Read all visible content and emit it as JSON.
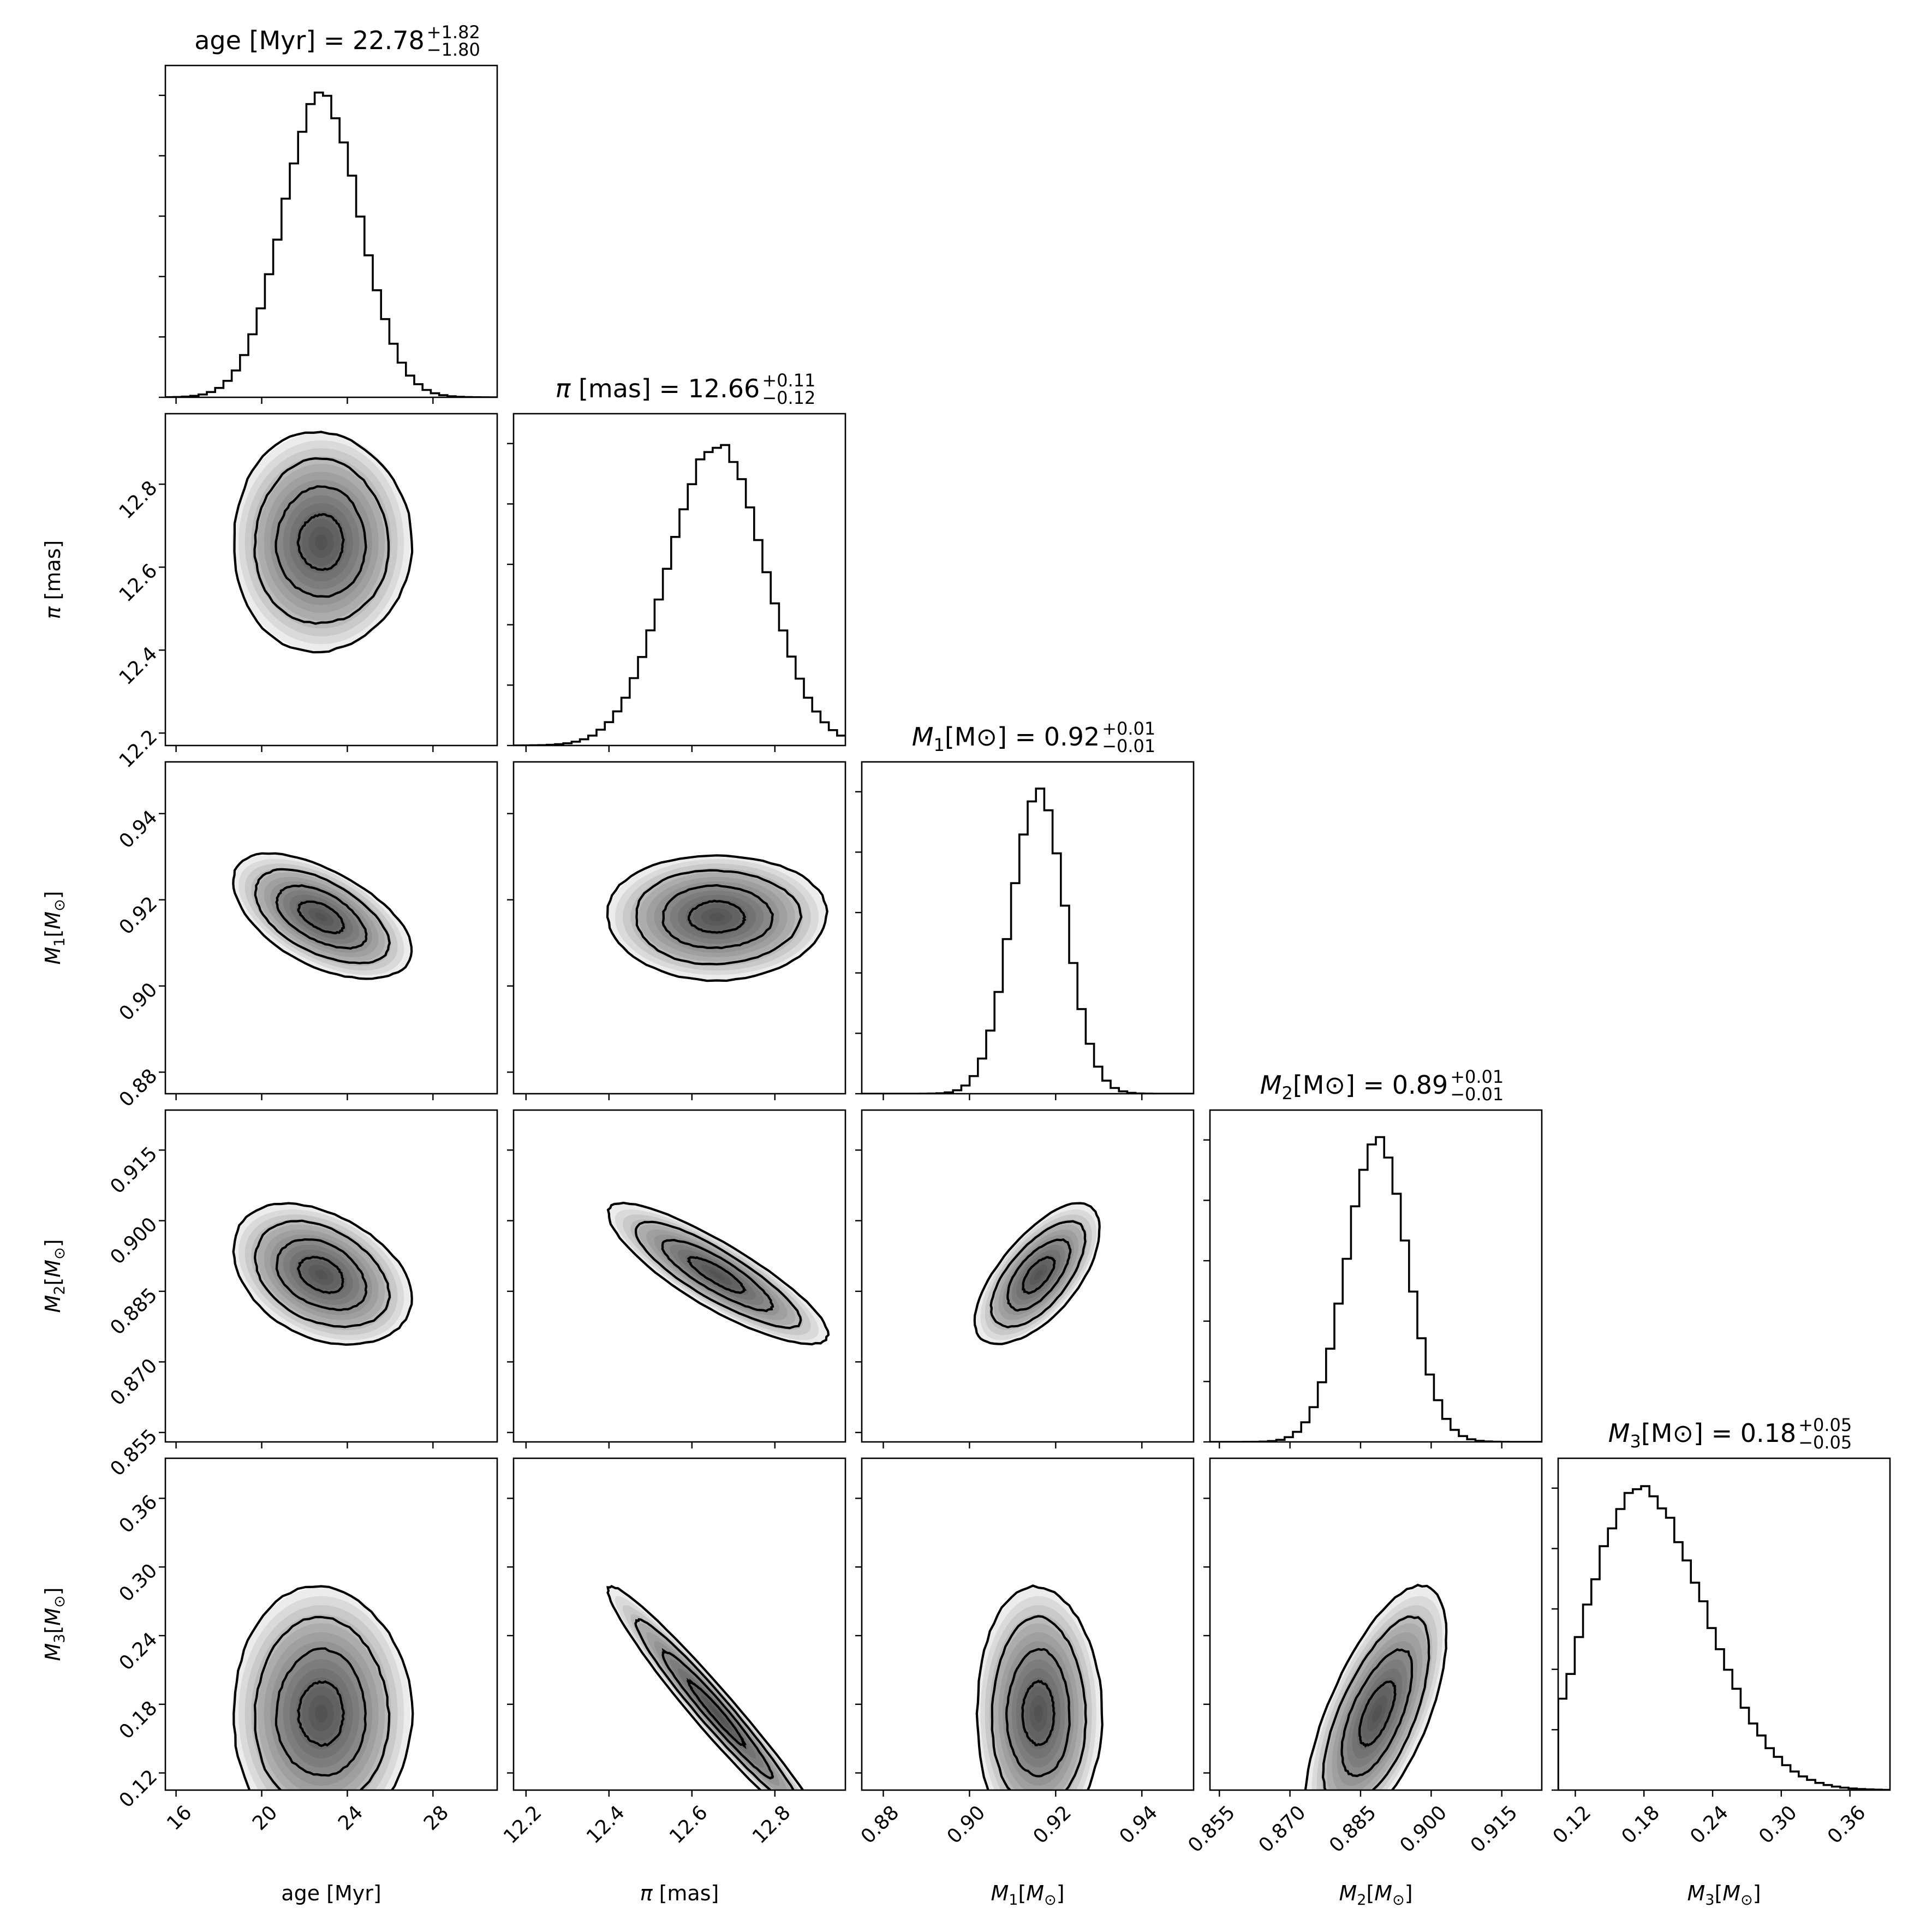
{
  "chart_data": {
    "type": "corner",
    "title": "",
    "parameters": [
      {
        "key": "age",
        "label": "age [Myr]",
        "title_name": "age [Myr]",
        "median": "22.78",
        "plus": "+1.82",
        "minus": "−1.80",
        "range": [
          15.5,
          31.0
        ],
        "ticks": [
          16,
          20,
          24,
          28
        ],
        "tick_labels": [
          "16",
          "20",
          "24",
          "28"
        ],
        "mu": 22.78,
        "sigma": 1.81,
        "label_parts": {
          "sym": "",
          "sub": "",
          "rest": "age [Myr]"
        }
      },
      {
        "key": "parallax",
        "label": "π [mas]",
        "title_name": "π [mas]",
        "median": "12.66",
        "plus": "+0.11",
        "minus": "−0.12",
        "range": [
          12.17,
          12.97
        ],
        "ticks": [
          12.2,
          12.4,
          12.6,
          12.8
        ],
        "tick_labels": [
          "12.2",
          "12.4",
          "12.6",
          "12.8"
        ],
        "mu": 12.66,
        "sigma": 0.115,
        "label_parts": {
          "sym": "π",
          "sub": "",
          "rest": " [mas]"
        }
      },
      {
        "key": "m1",
        "label": "M1[M⊙]",
        "title_name": "M1[M⊙]",
        "median": "0.92",
        "plus": "+0.01",
        "minus": "−0.01",
        "range": [
          0.875,
          0.952
        ],
        "ticks": [
          0.88,
          0.9,
          0.92,
          0.94
        ],
        "tick_labels": [
          "0.88",
          "0.90",
          "0.92",
          "0.94"
        ],
        "mu": 0.916,
        "sigma": 0.0063,
        "label_parts": {
          "sym": "M",
          "sub": "1",
          "rest": "[M⊙]"
        }
      },
      {
        "key": "m2",
        "label": "M2[M⊙]",
        "title_name": "M2[M⊙]",
        "median": "0.89",
        "plus": "+0.01",
        "minus": "−0.01",
        "range": [
          0.853,
          0.9235
        ],
        "ticks": [
          0.855,
          0.87,
          0.885,
          0.9,
          0.915
        ],
        "tick_labels": [
          "0.855",
          "0.870",
          "0.885",
          "0.900",
          "0.915"
        ],
        "mu": 0.8885,
        "sigma": 0.0065,
        "label_parts": {
          "sym": "M",
          "sub": "2",
          "rest": "[M⊙]"
        }
      },
      {
        "key": "m3",
        "label": "M3[M⊙]",
        "title_name": "M3[M⊙]",
        "median": "0.18",
        "plus": "+0.05",
        "minus": "−0.05",
        "range": [
          0.105,
          0.395
        ],
        "ticks": [
          0.12,
          0.18,
          0.24,
          0.3,
          0.36
        ],
        "tick_labels": [
          "0.12",
          "0.18",
          "0.24",
          "0.30",
          "0.36"
        ],
        "mu": 0.172,
        "sigma": 0.048,
        "label_parts": {
          "sym": "M",
          "sub": "3",
          "rest": "[M⊙]"
        }
      }
    ],
    "correlations": {
      "1-0": 0.0,
      "2-0": -0.55,
      "2-1": 0.0,
      "3-0": -0.35,
      "3-1": -0.85,
      "3-2": 0.65,
      "4-0": 0.0,
      "4-1": -0.97,
      "4-2": 0.0,
      "4-3": 0.65
    },
    "contour_levels_sigma": [
      0.5,
      1.0,
      1.5,
      2.0
    ],
    "style": {
      "line_color": "#000000",
      "shade_color": "#000000",
      "background": "#ffffff"
    }
  }
}
